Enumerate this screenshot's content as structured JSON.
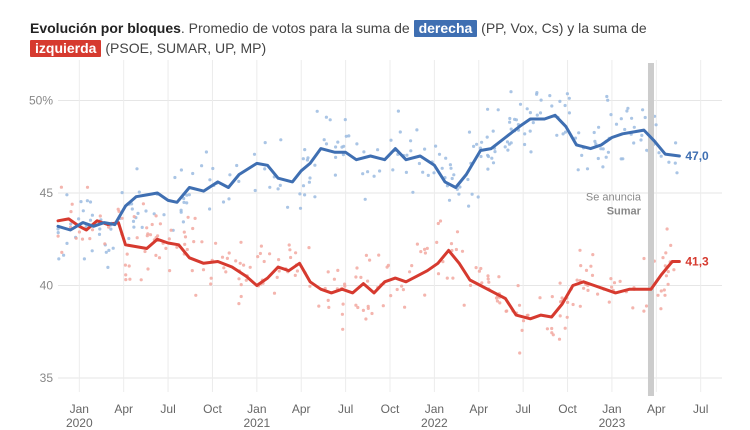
{
  "title": {
    "bold": "Evolución por bloques",
    "text1": ". Promedio de votos para la suma de ",
    "pill_right": "derecha",
    "text2": " (PP, Vox, Cs) y la suma de",
    "pill_left": "izquierda",
    "text3": " (PSOE, SUMAR, UP, MP)"
  },
  "colors": {
    "right": "#3f6fb2",
    "left": "#d63a2f",
    "right_dots": "#9bbbe0",
    "left_dots": "#f2a8a0",
    "marker": "#cccccc"
  },
  "chart_data": {
    "type": "line",
    "title": "Evolución por bloques",
    "xlabel": "",
    "ylabel": "",
    "x_range": [
      "2019-11",
      "2023-08"
    ],
    "ylim": [
      34,
      52
    ],
    "y_ticks": [
      {
        "value": 50,
        "label": "50%"
      },
      {
        "value": 45,
        "label": "45"
      },
      {
        "value": 40,
        "label": "40"
      },
      {
        "value": 35,
        "label": "35"
      }
    ],
    "x_ticks": [
      {
        "t": 2020.0,
        "label": "Jan",
        "year": "2020"
      },
      {
        "t": 2020.25,
        "label": "Apr",
        "year": ""
      },
      {
        "t": 2020.5,
        "label": "Jul",
        "year": ""
      },
      {
        "t": 2020.75,
        "label": "Oct",
        "year": ""
      },
      {
        "t": 2021.0,
        "label": "Jan",
        "year": "2021"
      },
      {
        "t": 2021.25,
        "label": "Apr",
        "year": ""
      },
      {
        "t": 2021.5,
        "label": "Jul",
        "year": ""
      },
      {
        "t": 2021.75,
        "label": "Oct",
        "year": ""
      },
      {
        "t": 2022.0,
        "label": "Jan",
        "year": "2022"
      },
      {
        "t": 2022.25,
        "label": "Apr",
        "year": ""
      },
      {
        "t": 2022.5,
        "label": "Jul",
        "year": ""
      },
      {
        "t": 2022.75,
        "label": "Oct",
        "year": ""
      },
      {
        "t": 2023.0,
        "label": "Jan",
        "year": "2023"
      },
      {
        "t": 2023.25,
        "label": "Apr",
        "year": ""
      },
      {
        "t": 2023.5,
        "label": "Jul",
        "year": ""
      }
    ],
    "event": {
      "t": 2023.22,
      "line1": "Se anuncia",
      "line2": "Sumar"
    },
    "series": [
      {
        "name": "derecha",
        "end_label": "47,0",
        "points": [
          [
            2019.88,
            43.2
          ],
          [
            2019.95,
            43.0
          ],
          [
            2020.02,
            43.4
          ],
          [
            2020.08,
            43.2
          ],
          [
            2020.14,
            43.4
          ],
          [
            2020.2,
            43.3
          ],
          [
            2020.26,
            44.3
          ],
          [
            2020.32,
            44.8
          ],
          [
            2020.38,
            44.9
          ],
          [
            2020.44,
            45.0
          ],
          [
            2020.5,
            44.6
          ],
          [
            2020.55,
            44.5
          ],
          [
            2020.62,
            45.3
          ],
          [
            2020.7,
            45.1
          ],
          [
            2020.78,
            45.6
          ],
          [
            2020.84,
            45.3
          ],
          [
            2020.9,
            46.0
          ],
          [
            2021.0,
            46.6
          ],
          [
            2021.06,
            46.5
          ],
          [
            2021.12,
            45.8
          ],
          [
            2021.2,
            45.6
          ],
          [
            2021.25,
            46.2
          ],
          [
            2021.3,
            46.6
          ],
          [
            2021.36,
            47.4
          ],
          [
            2021.44,
            47.2
          ],
          [
            2021.5,
            47.2
          ],
          [
            2021.56,
            46.8
          ],
          [
            2021.64,
            47.0
          ],
          [
            2021.72,
            46.8
          ],
          [
            2021.78,
            47.4
          ],
          [
            2021.84,
            46.8
          ],
          [
            2021.92,
            47.0
          ],
          [
            2022.0,
            46.5
          ],
          [
            2022.06,
            45.6
          ],
          [
            2022.12,
            45.3
          ],
          [
            2022.18,
            46.0
          ],
          [
            2022.26,
            47.3
          ],
          [
            2022.32,
            47.4
          ],
          [
            2022.4,
            48.0
          ],
          [
            2022.48,
            48.6
          ],
          [
            2022.54,
            49.0
          ],
          [
            2022.62,
            49.0
          ],
          [
            2022.68,
            49.2
          ],
          [
            2022.74,
            48.6
          ],
          [
            2022.8,
            47.6
          ],
          [
            2022.88,
            47.4
          ],
          [
            2022.94,
            47.6
          ],
          [
            2023.0,
            48.0
          ],
          [
            2023.06,
            48.2
          ],
          [
            2023.12,
            48.3
          ],
          [
            2023.18,
            48.4
          ],
          [
            2023.24,
            47.8
          ],
          [
            2023.3,
            47.1
          ],
          [
            2023.38,
            47.0
          ]
        ]
      },
      {
        "name": "izquierda",
        "end_label": "41,3",
        "points": [
          [
            2019.88,
            43.5
          ],
          [
            2019.94,
            43.6
          ],
          [
            2020.0,
            43.2
          ],
          [
            2020.04,
            43.0
          ],
          [
            2020.1,
            43.5
          ],
          [
            2020.16,
            43.3
          ],
          [
            2020.22,
            43.4
          ],
          [
            2020.26,
            42.2
          ],
          [
            2020.32,
            42.1
          ],
          [
            2020.38,
            42.0
          ],
          [
            2020.44,
            42.5
          ],
          [
            2020.5,
            42.3
          ],
          [
            2020.56,
            42.2
          ],
          [
            2020.62,
            41.5
          ],
          [
            2020.7,
            41.2
          ],
          [
            2020.78,
            41.3
          ],
          [
            2020.86,
            41.0
          ],
          [
            2020.94,
            40.5
          ],
          [
            2021.0,
            40.0
          ],
          [
            2021.06,
            40.4
          ],
          [
            2021.12,
            41.0
          ],
          [
            2021.18,
            40.8
          ],
          [
            2021.24,
            41.2
          ],
          [
            2021.3,
            40.2
          ],
          [
            2021.36,
            39.8
          ],
          [
            2021.42,
            39.6
          ],
          [
            2021.48,
            39.8
          ],
          [
            2021.54,
            39.6
          ],
          [
            2021.6,
            40.1
          ],
          [
            2021.66,
            39.6
          ],
          [
            2021.72,
            40.2
          ],
          [
            2021.78,
            40.4
          ],
          [
            2021.84,
            40.2
          ],
          [
            2021.9,
            40.5
          ],
          [
            2021.96,
            40.8
          ],
          [
            2022.02,
            41.2
          ],
          [
            2022.08,
            41.9
          ],
          [
            2022.14,
            41.2
          ],
          [
            2022.2,
            40.3
          ],
          [
            2022.26,
            40.0
          ],
          [
            2022.34,
            39.6
          ],
          [
            2022.4,
            39.3
          ],
          [
            2022.46,
            38.4
          ],
          [
            2022.54,
            38.2
          ],
          [
            2022.6,
            38.4
          ],
          [
            2022.66,
            38.3
          ],
          [
            2022.72,
            39.0
          ],
          [
            2022.78,
            40.0
          ],
          [
            2022.84,
            40.2
          ],
          [
            2022.9,
            40.0
          ],
          [
            2022.96,
            39.8
          ],
          [
            2023.02,
            39.6
          ],
          [
            2023.1,
            39.8
          ],
          [
            2023.16,
            39.8
          ],
          [
            2023.22,
            39.8
          ],
          [
            2023.28,
            40.6
          ],
          [
            2023.34,
            41.3
          ],
          [
            2023.38,
            41.3
          ]
        ]
      }
    ]
  }
}
